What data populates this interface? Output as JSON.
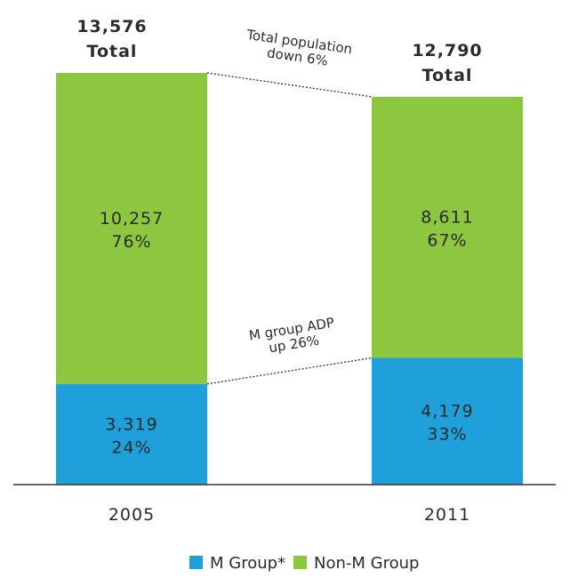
{
  "chart_data": {
    "type": "stacked_bar",
    "categories": [
      "2005",
      "2011"
    ],
    "series": [
      {
        "name": "M Group*",
        "color": "#1fa0da",
        "values": [
          3319,
          4179
        ],
        "value_labels": [
          "3,319",
          "4,179"
        ],
        "shares": [
          24,
          33
        ],
        "share_labels": [
          "24%",
          "33%"
        ]
      },
      {
        "name": "Non-M Group",
        "color": "#8dc63f",
        "values": [
          10257,
          8611
        ],
        "value_labels": [
          "10,257",
          "8,611"
        ],
        "shares": [
          76,
          67
        ],
        "share_labels": [
          "76%",
          "67%"
        ]
      }
    ],
    "totals": [
      13576,
      12790
    ],
    "total_labels": [
      "13,576",
      "12,790"
    ],
    "total_word": "Total",
    "annotations": [
      {
        "lines": [
          "Total population",
          "down 6%"
        ]
      },
      {
        "lines": [
          "M group ADP",
          "up 26%"
        ]
      }
    ]
  }
}
